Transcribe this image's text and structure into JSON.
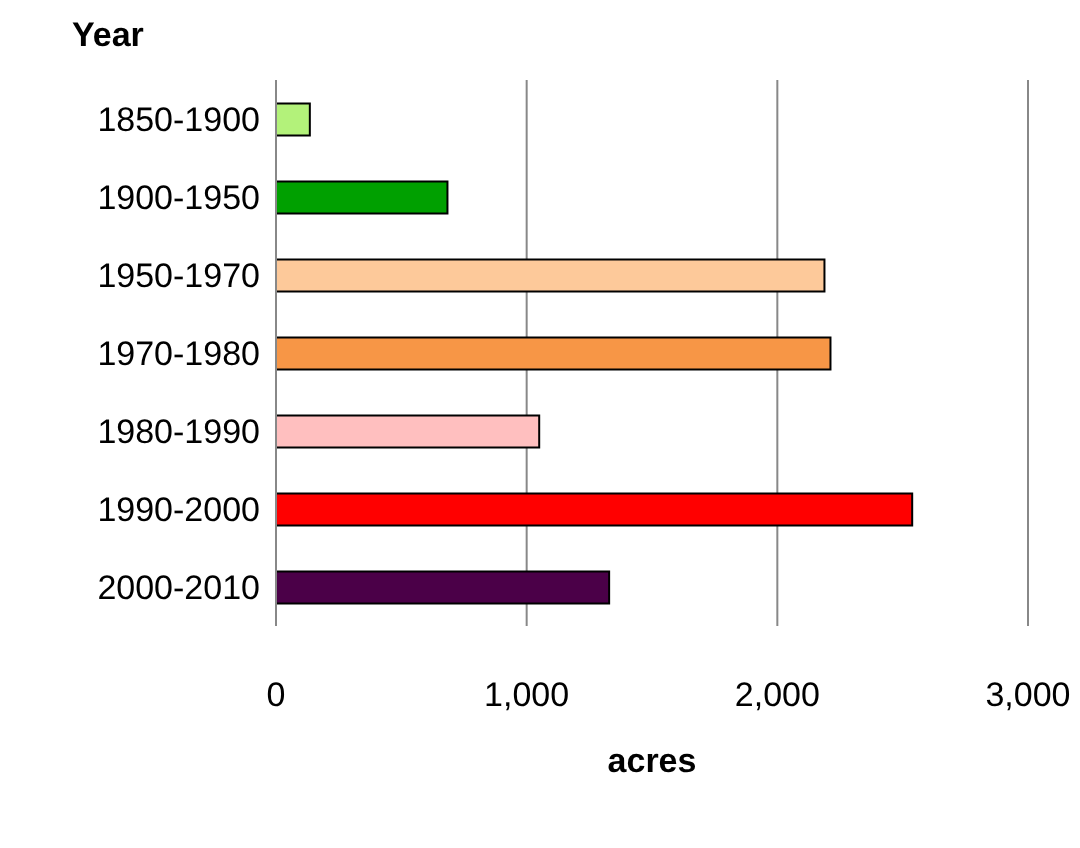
{
  "chart_data": {
    "type": "bar",
    "orientation": "horizontal",
    "ylabel": "Year",
    "xlabel": "acres",
    "categories": [
      "1850-1900",
      "1900-1950",
      "1950-1970",
      "1970-1980",
      "1980-1990",
      "1990-2000",
      "2000-2010"
    ],
    "values": [
      135,
      684,
      2188,
      2212,
      1050,
      2538,
      1329
    ],
    "colors": [
      "#b3f27a",
      "#00a000",
      "#fdc99a",
      "#f79646",
      "#ffbfbf",
      "#ff0000",
      "#4b0048"
    ],
    "xlim": [
      0,
      3000
    ],
    "xticks": [
      0,
      {
        "value": 1000,
        "label": "1,000"
      },
      {
        "value": 2000,
        "label": "2,000"
      },
      {
        "value": 3000,
        "label": "3,000"
      }
    ],
    "grid": "x",
    "legend": false
  }
}
